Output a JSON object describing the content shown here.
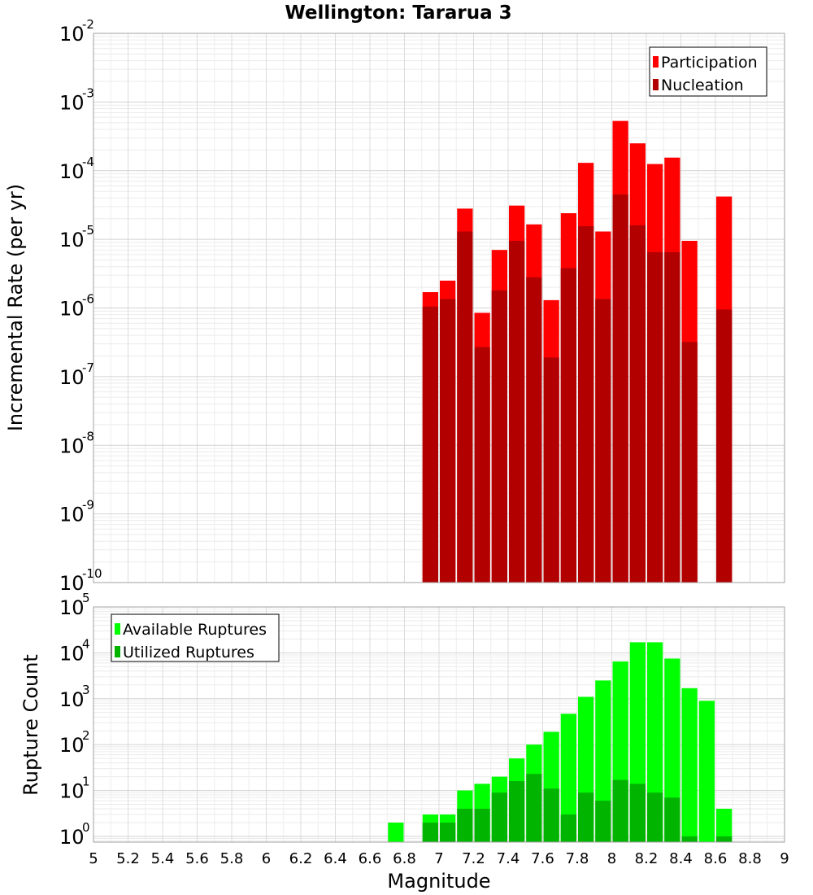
{
  "chart_data": [
    {
      "type": "bar",
      "title": "Wellington: Tararua 3",
      "xlabel": "Magnitude",
      "ylabel": "Incremental Rate (per yr)",
      "yscale": "log",
      "ylim": [
        1e-10,
        0.01
      ],
      "xlim": [
        5,
        9
      ],
      "grid": true,
      "legend_position": "top-right",
      "y_ticks": [
        {
          "base": "10",
          "exp": "-10",
          "value": 1e-10
        },
        {
          "base": "10",
          "exp": "-9",
          "value": 1e-09
        },
        {
          "base": "10",
          "exp": "-8",
          "value": 1e-08
        },
        {
          "base": "10",
          "exp": "-7",
          "value": 1e-07
        },
        {
          "base": "10",
          "exp": "-6",
          "value": 1e-06
        },
        {
          "base": "10",
          "exp": "-5",
          "value": 1e-05
        },
        {
          "base": "10",
          "exp": "-4",
          "value": 0.0001
        },
        {
          "base": "10",
          "exp": "-3",
          "value": 0.001
        },
        {
          "base": "10",
          "exp": "-2",
          "value": 0.01
        }
      ],
      "x": [
        6.95,
        7.05,
        7.15,
        7.25,
        7.35,
        7.45,
        7.55,
        7.65,
        7.75,
        7.85,
        7.95,
        8.05,
        8.15,
        8.25,
        8.35,
        8.45,
        8.55,
        8.65
      ],
      "series": [
        {
          "name": "Participation",
          "color": "#ff0000",
          "values": [
            1.7e-06,
            2.5e-06,
            2.8e-05,
            8.5e-07,
            7e-06,
            3.1e-05,
            1.65e-05,
            1.3e-06,
            2.4e-05,
            0.00013,
            1.3e-05,
            0.00053,
            0.00025,
            0.000125,
            0.000155,
            9.5e-06,
            null,
            4.2e-05
          ]
        },
        {
          "name": "Nucleation",
          "color": "#b20000",
          "values": [
            1.05e-06,
            1.35e-06,
            1.3e-05,
            2.7e-07,
            1.8e-06,
            9.5e-06,
            2.8e-06,
            1.9e-07,
            3.8e-06,
            1.55e-05,
            1.35e-06,
            4.5e-05,
            1.6e-05,
            6.5e-06,
            6.5e-06,
            3.2e-07,
            null,
            9.5e-07
          ]
        }
      ]
    },
    {
      "type": "bar",
      "xlabel": "Magnitude",
      "ylabel": "Rupture Count",
      "yscale": "log",
      "ylim": [
        0.75,
        100000
      ],
      "xlim": [
        5,
        9
      ],
      "grid": true,
      "legend_position": "top-left",
      "y_ticks": [
        {
          "base": "10",
          "exp": "0",
          "value": 1
        },
        {
          "base": "10",
          "exp": "1",
          "value": 10
        },
        {
          "base": "10",
          "exp": "2",
          "value": 100
        },
        {
          "base": "10",
          "exp": "3",
          "value": 1000
        },
        {
          "base": "10",
          "exp": "4",
          "value": 10000
        },
        {
          "base": "10",
          "exp": "5",
          "value": 100000
        }
      ],
      "x_ticks": [
        "5",
        "5.2",
        "5.4",
        "5.6",
        "5.8",
        "6",
        "6.2",
        "6.4",
        "6.6",
        "6.8",
        "7",
        "7.2",
        "7.4",
        "7.6",
        "7.8",
        "8",
        "8.2",
        "8.4",
        "8.6",
        "8.8",
        "9"
      ],
      "x": [
        6.75,
        6.95,
        7.05,
        7.15,
        7.25,
        7.35,
        7.45,
        7.55,
        7.65,
        7.75,
        7.85,
        7.95,
        8.05,
        8.15,
        8.25,
        8.35,
        8.45,
        8.55,
        8.65
      ],
      "series": [
        {
          "name": "Available Ruptures",
          "color": "#00ff00",
          "values": [
            2,
            3,
            3,
            10,
            14,
            20,
            50,
            100,
            190,
            470,
            1100,
            2500,
            6500,
            17000,
            17000,
            7500,
            1700,
            900,
            4
          ]
        },
        {
          "name": "Utilized Ruptures",
          "color": "#00b400",
          "values": [
            null,
            2,
            2,
            4,
            4,
            9,
            16,
            23,
            11,
            3,
            9,
            6,
            17,
            14,
            9,
            7,
            1,
            null,
            1
          ]
        }
      ]
    }
  ]
}
